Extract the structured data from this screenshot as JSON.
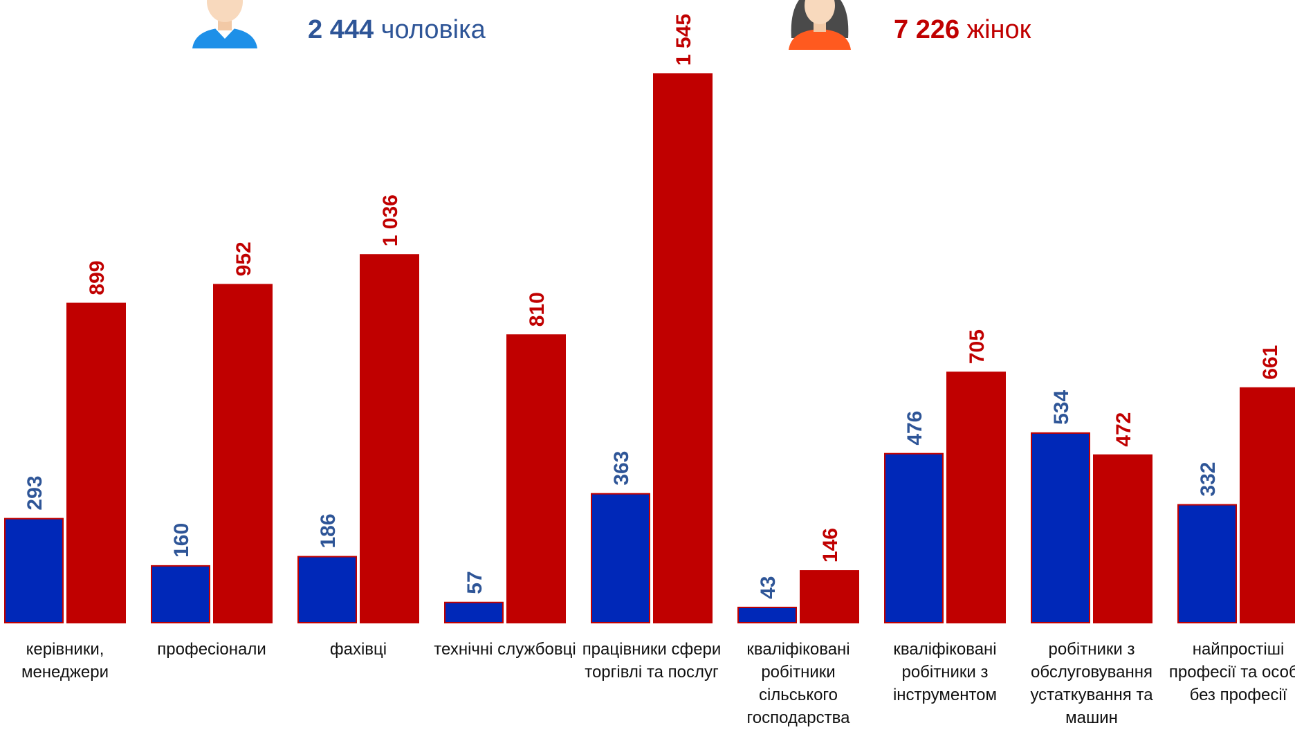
{
  "legend": {
    "men": {
      "count": "2 444",
      "label": "чоловіка",
      "color": "#2e5597"
    },
    "women": {
      "count": "7 226",
      "label": "жінок",
      "color": "#c00000"
    }
  },
  "chart_data": {
    "type": "bar",
    "categories": [
      "керівники, менеджери",
      "професіонали",
      "фахівці",
      "технічні службовці",
      "працівники сфери торгівлі та послуг",
      "кваліфіковані робітники сільського господарства",
      "кваліфіковані робітники з інструментом",
      "робітники з обслуговування устаткування та машин",
      "найпростіші професії та особи без професії"
    ],
    "series": [
      {
        "name": "чоловіка",
        "values": [
          293,
          160,
          186,
          57,
          363,
          43,
          476,
          534,
          332
        ],
        "labels": [
          "293",
          "160",
          "186",
          "57",
          "363",
          "43",
          "476",
          "534",
          "332"
        ],
        "color": "#0028b8",
        "label_color": "#2e5597"
      },
      {
        "name": "жінок",
        "values": [
          899,
          952,
          1036,
          810,
          1545,
          146,
          705,
          472,
          661
        ],
        "labels": [
          "899",
          "952",
          "1 036",
          "810",
          "1 545",
          "146",
          "705",
          "472",
          "661"
        ],
        "color": "#c00000",
        "label_color": "#c00000"
      }
    ],
    "ylim": [
      0,
      1545
    ],
    "grid": false,
    "legend_position": "top"
  }
}
